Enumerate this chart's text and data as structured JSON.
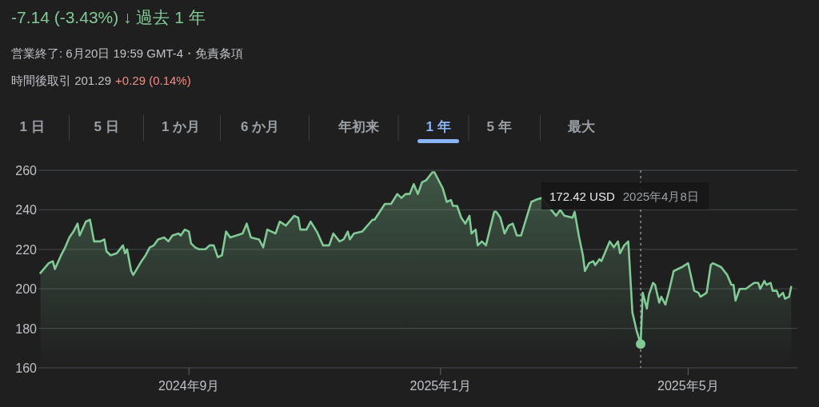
{
  "chart_data": {
    "type": "area",
    "title": "-7.14 (-3.43%) ↓ 過去 1 年",
    "subtitle": "営業終了: 6月20日 19:59 GMT-4・免責条項",
    "annotations": [
      "時間後取引 201.29",
      "+0.29 (0.14%)",
      "1 日",
      "5 日",
      "1 か月",
      "6 か月",
      "年初来",
      "1 年",
      "5 年",
      "最大",
      "172.42 USD",
      "2025年4月8日"
    ],
    "xlim": [
      "2024-06-20",
      "2025-06-23"
    ],
    "xticks": [
      {
        "value": "2024-09-01",
        "label": "2024年9月"
      },
      {
        "value": "2025-01-01",
        "label": "2025年1月"
      },
      {
        "value": "2025-05-01",
        "label": "2025年5月"
      }
    ],
    "ylim": [
      160,
      260
    ],
    "yticks": [
      160,
      180,
      200,
      220,
      240,
      260
    ],
    "grid": "y",
    "ref_lines": [
      {
        "axis": "x",
        "value": "2025-04-08",
        "color": "#9aa0a6",
        "line_style": "dotted"
      }
    ],
    "series": [
      {
        "color": "#81c995",
        "x": [
          "2024-06-21",
          "2024-06-25",
          "2024-06-27",
          "2024-06-28",
          "2024-07-01",
          "2024-07-03",
          "2024-07-05",
          "2024-07-07",
          "2024-07-09",
          "2024-07-10",
          "2024-07-13",
          "2024-07-15",
          "2024-07-17",
          "2024-07-20",
          "2024-07-22",
          "2024-07-23",
          "2024-07-25",
          "2024-07-28",
          "2024-07-31",
          "2024-08-01",
          "2024-08-02",
          "2024-08-04",
          "2024-08-05",
          "2024-08-09",
          "2024-08-11",
          "2024-08-13",
          "2024-08-15",
          "2024-08-17",
          "2024-08-20",
          "2024-08-22",
          "2024-08-24",
          "2024-08-27",
          "2024-08-28",
          "2024-08-30",
          "2024-09-01",
          "2024-09-02",
          "2024-09-04",
          "2024-09-06",
          "2024-09-09",
          "2024-09-11",
          "2024-09-13",
          "2024-09-15",
          "2024-09-17",
          "2024-09-19",
          "2024-09-21",
          "2024-09-24",
          "2024-09-27",
          "2024-09-29",
          "2024-10-01",
          "2024-10-05",
          "2024-10-07",
          "2024-10-09",
          "2024-10-13",
          "2024-10-15",
          "2024-10-18",
          "2024-10-22",
          "2024-10-24",
          "2024-10-25",
          "2024-10-28",
          "2024-10-30",
          "2024-11-02",
          "2024-11-05",
          "2024-11-07",
          "2024-11-08",
          "2024-11-10",
          "2024-11-13",
          "2024-11-15",
          "2024-11-17",
          "2024-11-18",
          "2024-11-20",
          "2024-11-24",
          "2024-11-29",
          "2024-11-30",
          "2024-12-05",
          "2024-12-08",
          "2024-12-11",
          "2024-12-13",
          "2024-12-15",
          "2024-12-17",
          "2024-12-19",
          "2024-12-21",
          "2024-12-23",
          "2024-12-25",
          "2024-12-28",
          "2024-12-29",
          "2025-01-02",
          "2025-01-04",
          "2025-01-06",
          "2025-01-07",
          "2025-01-09",
          "2025-01-11",
          "2025-01-13",
          "2025-01-15",
          "2025-01-16",
          "2025-01-18",
          "2025-01-19",
          "2025-01-21",
          "2025-01-23",
          "2025-01-27",
          "2025-01-28",
          "2025-01-30",
          "2025-02-01",
          "2025-02-03",
          "2025-02-05",
          "2025-02-07",
          "2025-02-09",
          "2025-02-14",
          "2025-02-16",
          "2025-02-19",
          "2025-02-26",
          "2025-02-28",
          "2025-03-02",
          "2025-03-06",
          "2025-03-07",
          "2025-03-09",
          "2025-03-11",
          "2025-03-12",
          "2025-03-14",
          "2025-03-16",
          "2025-03-17",
          "2025-03-19",
          "2025-03-20",
          "2025-03-22",
          "2025-03-24",
          "2025-03-26",
          "2025-03-28",
          "2025-03-29",
          "2025-03-31",
          "2025-04-02",
          "2025-04-04",
          "2025-04-06",
          "2025-04-08",
          "2025-04-09",
          "2025-04-11",
          "2025-04-12",
          "2025-04-14",
          "2025-04-15",
          "2025-04-17",
          "2025-04-18",
          "2025-04-20",
          "2025-04-22",
          "2025-04-24",
          "2025-04-28",
          "2025-05-01",
          "2025-05-04",
          "2025-05-06",
          "2025-05-07",
          "2025-05-10",
          "2025-05-12",
          "2025-05-13",
          "2025-05-17",
          "2025-05-20",
          "2025-05-22",
          "2025-05-23",
          "2025-05-24",
          "2025-05-26",
          "2025-05-29",
          "2025-06-02",
          "2025-06-04",
          "2025-06-05",
          "2025-06-07",
          "2025-06-08",
          "2025-06-10",
          "2025-06-11",
          "2025-06-13",
          "2025-06-14",
          "2025-06-16",
          "2025-06-17",
          "2025-06-19",
          "2025-06-20"
        ],
        "values": [
          208,
          213,
          214,
          210,
          217,
          221,
          226,
          229,
          233,
          227,
          234,
          235,
          224,
          224,
          225,
          219,
          217,
          218,
          222,
          218,
          220,
          209,
          207,
          214,
          217,
          221,
          222,
          225,
          226,
          224,
          227,
          228,
          227,
          230,
          229,
          223,
          221,
          220,
          220,
          222,
          222,
          216,
          217,
          229,
          226,
          227,
          228,
          233,
          226,
          225,
          221,
          230,
          228,
          234,
          232,
          237,
          236,
          230,
          230,
          234,
          229,
          222,
          222,
          222,
          228,
          224,
          225,
          229,
          225,
          228,
          229,
          235,
          235,
          243,
          243,
          248,
          246,
          248,
          248,
          253,
          248,
          254,
          255,
          259,
          259,
          251,
          244,
          245,
          242,
          242,
          236,
          233,
          237,
          228,
          230,
          222,
          224,
          222,
          239,
          239,
          236,
          228,
          232,
          233,
          227,
          227,
          244,
          245,
          246,
          237,
          240,
          237,
          236,
          239,
          227,
          217,
          209,
          213,
          214,
          212,
          215,
          214,
          219,
          224,
          221,
          224,
          218,
          222,
          224,
          188,
          179,
          172,
          198,
          190,
          197,
          203,
          202,
          193,
          196,
          192,
          200,
          209,
          211,
          213,
          199,
          198,
          196,
          198,
          212,
          213,
          211,
          207,
          202,
          202,
          194,
          200,
          200,
          203,
          203,
          200,
          204,
          202,
          203,
          199,
          199,
          196,
          198,
          195,
          196,
          201
        ]
      }
    ]
  }
}
